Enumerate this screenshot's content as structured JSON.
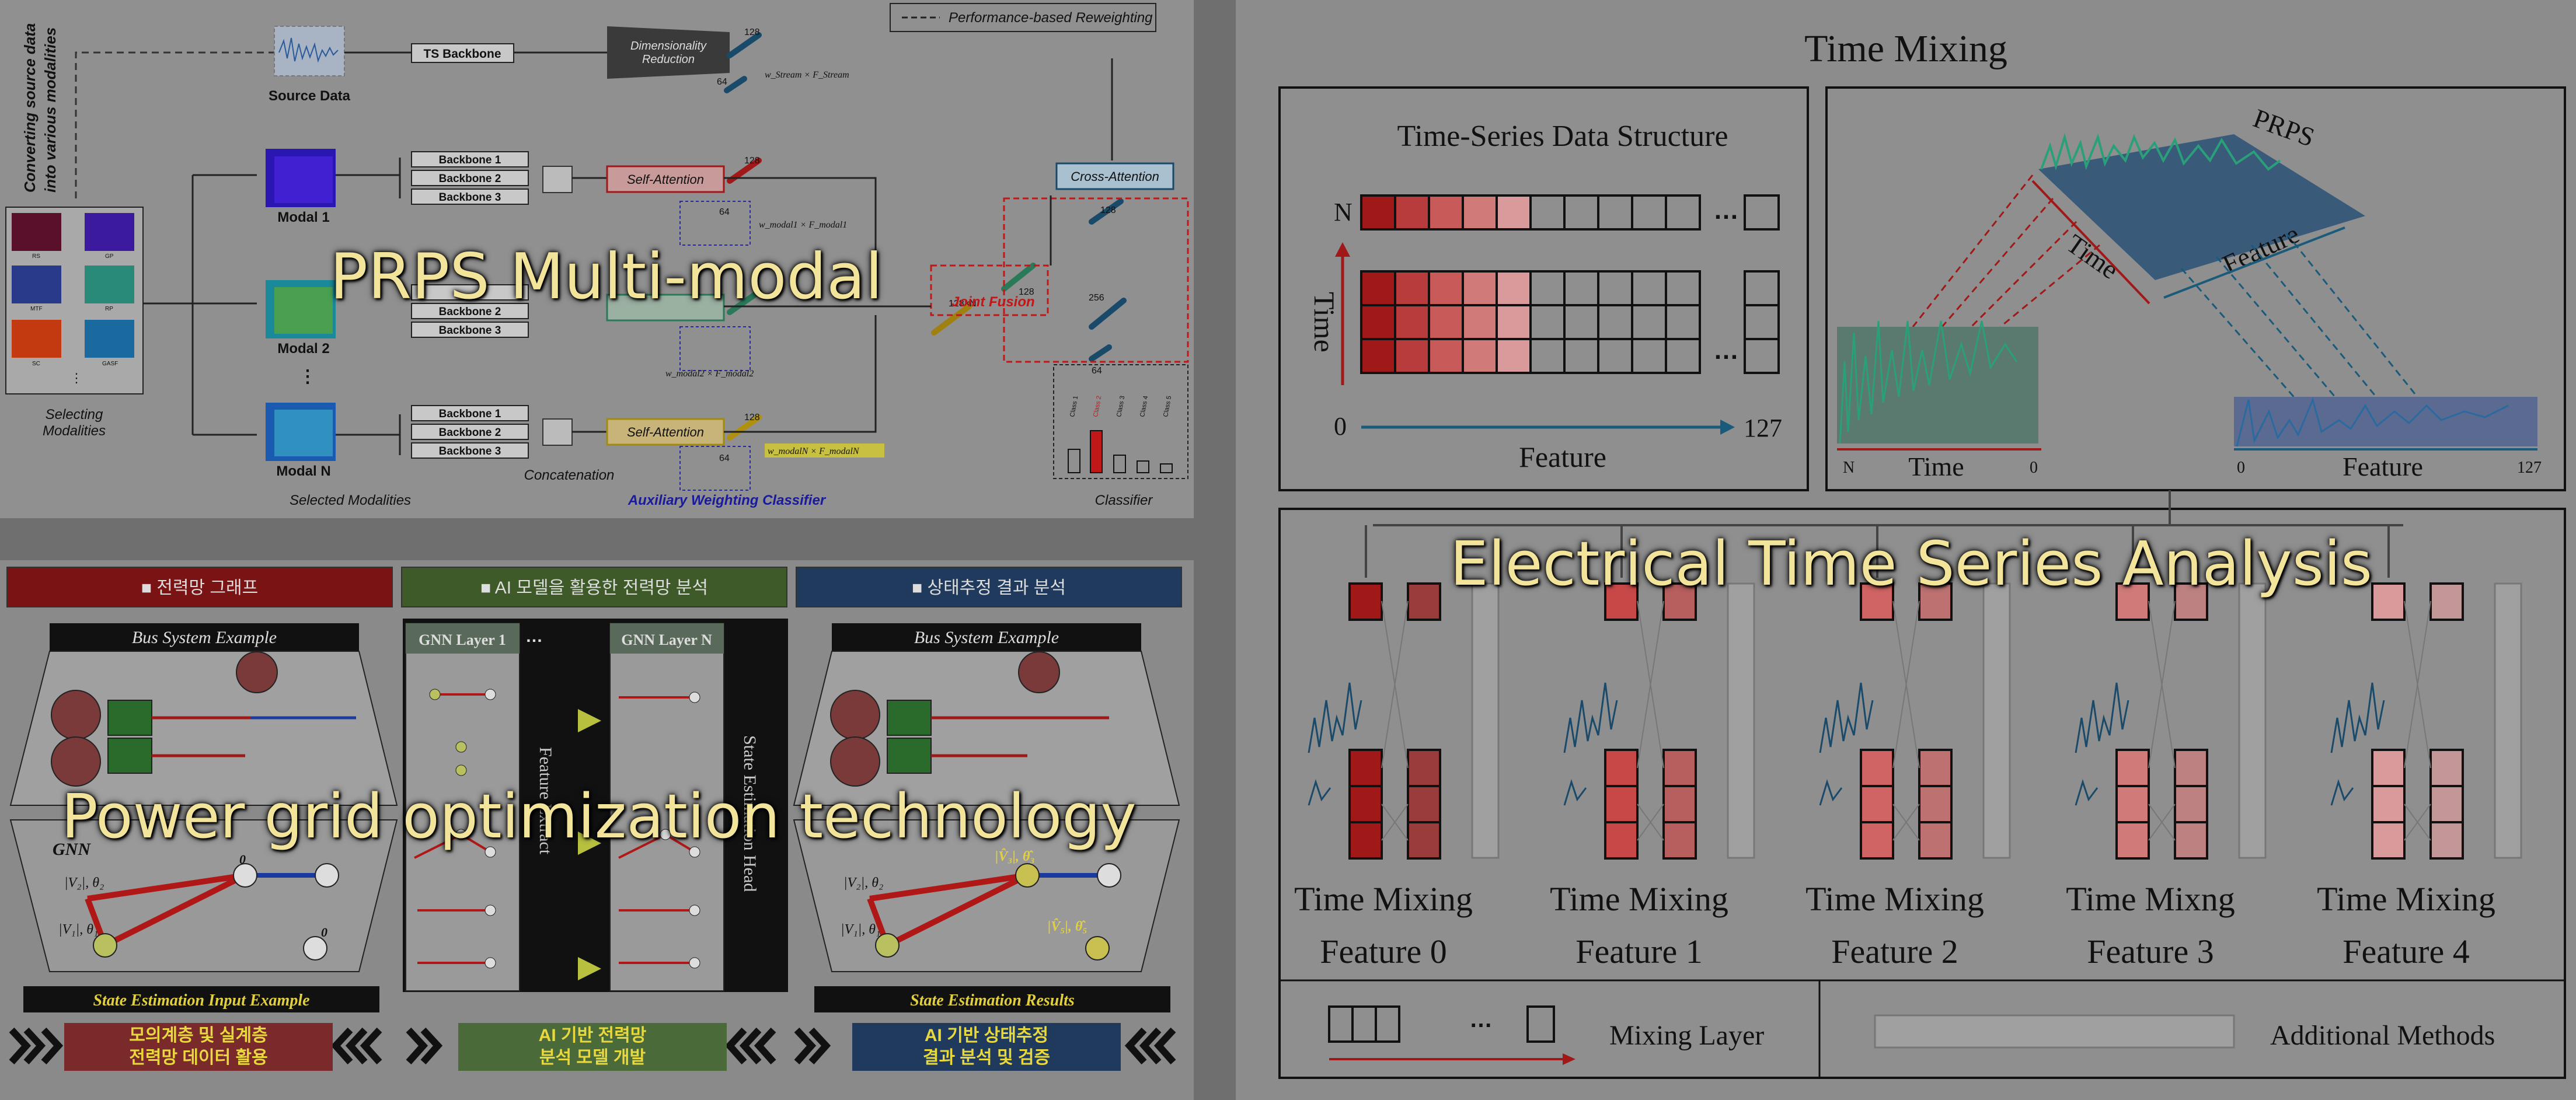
{
  "panel1": {
    "legend": "Performance-based Reweighting",
    "side_label_1": "Converting source data",
    "side_label_2": "into various modalities",
    "thumb_labels": [
      "RS",
      "GP",
      "MTF",
      "RP",
      "SC",
      "GASF"
    ],
    "thumb_dots": "⋮",
    "selecting": [
      "Selecting",
      "Modalities"
    ],
    "source_data": "Source Data",
    "ts_backbone": "TS Backbone",
    "dim_reduction": [
      "Dimensionality",
      "Reduction"
    ],
    "modal_1": "Modal 1",
    "modal_2": "Modal 2",
    "modal_n": "Modal N",
    "modal_dots": "⋮",
    "backbones": [
      "Backbone 1",
      "Backbone 2",
      "Backbone 3"
    ],
    "self_attention": "Self-Attention",
    "cross_attention": "Cross-Attention",
    "joint_fusion": "Joint Fusion",
    "dims": [
      "128",
      "64",
      "128",
      "64",
      "128",
      "64",
      "128",
      "64",
      "128×N",
      "128",
      "256",
      "128",
      "64"
    ],
    "weights": [
      "w_Stream × F_Stream",
      "w_modal1 × F_modal1",
      "w_modal2 × F_modal2",
      "w_modalN × F_modalN"
    ],
    "bottom_selected": "Selected Modalities",
    "bottom_concat": "Concatenation",
    "bottom_aux": "Auxiliary Weighting Classifier",
    "bottom_classifier": "Classifier",
    "classes": [
      "Class 1",
      "Class 2",
      "Class 3",
      "Class 4",
      "Class 5"
    ],
    "overlay": "PRPS Multi-modal"
  },
  "panel2": {
    "headers": [
      "■ 전력망 그래프",
      "■ AI 모델을 활용한 전력망 분석",
      "■ 상태추정 결과 분석"
    ],
    "bus_example_left": "Bus System Example",
    "bus_example_right": "Bus System Example",
    "gnn": "GNN",
    "gnn_layer_1": "GNN Layer 1",
    "gnn_layer_n": "GNN Layer N",
    "feat_extract": "Feature Extract",
    "state_head": "State Estimation Head",
    "input_example": "State Estimation Input Example",
    "results": "State Estimation Results",
    "v2": "|V₂|, θ₂",
    "v1": "|V₁|, θ₁",
    "v3": "|V̂₃|, θ̂₃",
    "v5": "|V̂₅|, θ̂₅",
    "zero": "0",
    "dots": "…",
    "bottom_boxes": [
      "모의계층 및 실계층\n전력망 데이터 활용",
      "AI 기반 전력망\n분석 모델 개발",
      "AI 기반 상태추정\n결과 분석 및 검증"
    ],
    "overlay": "Power grid optimization technology"
  },
  "panel3": {
    "title": "Time Mixing",
    "ts_title": "Time-Series Data Structure",
    "axis_n": "N",
    "axis_time": "Time",
    "axis_zero": "0",
    "axis_feature": "Feature",
    "axis_127": "127",
    "prps": "PRPS",
    "plot_time": "Time",
    "plot_feature": "Feature",
    "plot_n": "N",
    "plot_0a": "0",
    "plot_0b": "0",
    "plot_127": "127",
    "mixers": [
      {
        "line1": "Time Mixing",
        "line2": "Feature 0"
      },
      {
        "line1": "Time Mixing",
        "line2": "Feature 1"
      },
      {
        "line1": "Time Mixing",
        "line2": "Feature 2"
      },
      {
        "line1": "Time Mixng",
        "line2": "Feature 3"
      },
      {
        "line1": "Time Mixing",
        "line2": "Feature 4"
      }
    ],
    "legend_mixing": "Mixing Layer",
    "legend_additional": "Additional Methods",
    "dots": "…",
    "overlay": "Electrical Time Series Analysis"
  },
  "colors": {
    "red": "#b01818",
    "overlay_text": "#f2e49a",
    "header_red": "#7a1414",
    "header_green": "#3e5a28",
    "header_blue": "#1f3a5c"
  }
}
